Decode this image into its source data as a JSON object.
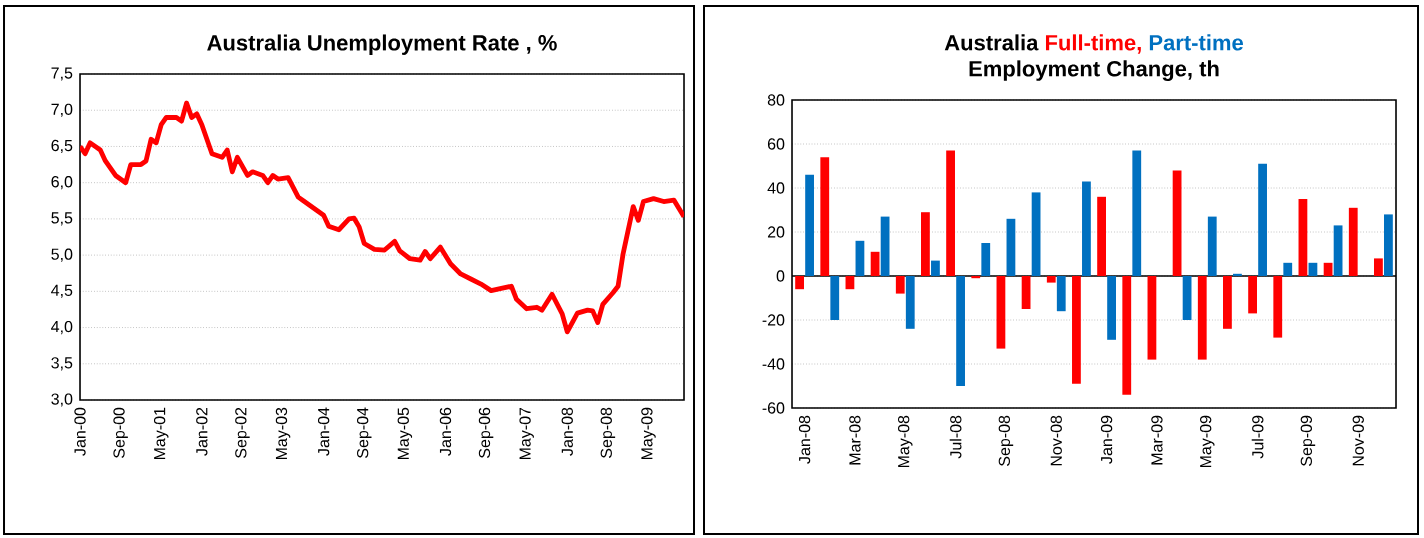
{
  "chart_data": [
    {
      "type": "line",
      "title": "Australia Unemployment Rate , %",
      "color": "#ff0000",
      "grid": "y",
      "marker": "none",
      "line_style": "solid",
      "x": [
        "2000-01",
        "2000-02",
        "2000-03",
        "2000-05",
        "2000-06",
        "2000-08",
        "2000-09",
        "2000-10",
        "2000-11",
        "2001-01",
        "2001-02",
        "2001-03",
        "2001-04",
        "2001-05",
        "2001-06",
        "2001-08",
        "2001-09",
        "2001-10",
        "2001-11",
        "2001-12",
        "2002-01",
        "2002-03",
        "2002-05",
        "2002-06",
        "2002-07",
        "2002-08",
        "2002-10",
        "2002-11",
        "2003-01",
        "2003-02",
        "2003-03",
        "2003-04",
        "2003-06",
        "2003-08",
        "2003-09",
        "2003-11",
        "2004-01",
        "2004-02",
        "2004-04",
        "2004-06",
        "2004-07",
        "2004-08",
        "2004-09",
        "2004-11",
        "2005-01",
        "2005-03",
        "2005-04",
        "2005-06",
        "2005-08",
        "2005-09",
        "2005-10",
        "2005-12",
        "2006-02",
        "2006-04",
        "2006-06",
        "2006-08",
        "2006-10",
        "2006-12",
        "2007-02",
        "2007-03",
        "2007-05",
        "2007-07",
        "2007-08",
        "2007-10",
        "2007-12",
        "2008-01",
        "2008-03",
        "2008-05",
        "2008-06",
        "2008-07",
        "2008-08",
        "2008-10",
        "2008-11",
        "2008-12",
        "2009-02",
        "2009-03",
        "2009-04",
        "2009-06",
        "2009-08",
        "2009-10",
        "2009-12"
      ],
      "values": [
        6.5,
        6.4,
        6.55,
        6.45,
        6.3,
        6.1,
        6.05,
        6.0,
        6.25,
        6.25,
        6.3,
        6.6,
        6.55,
        6.8,
        6.9,
        6.9,
        6.85,
        7.1,
        6.9,
        6.95,
        6.8,
        6.4,
        6.35,
        6.45,
        6.15,
        6.35,
        6.1,
        6.15,
        6.1,
        6.0,
        6.1,
        6.05,
        6.07,
        5.8,
        5.75,
        5.65,
        5.55,
        5.4,
        5.35,
        5.5,
        5.51,
        5.39,
        5.16,
        5.08,
        5.07,
        5.19,
        5.06,
        4.95,
        4.93,
        5.05,
        4.95,
        5.11,
        4.88,
        4.74,
        4.67,
        4.6,
        4.51,
        4.54,
        4.57,
        4.39,
        4.26,
        4.28,
        4.24,
        4.46,
        4.19,
        3.94,
        4.2,
        4.24,
        4.23,
        4.07,
        4.32,
        4.48,
        4.57,
        5.02,
        5.67,
        5.48,
        5.74,
        5.78,
        5.74,
        5.76,
        5.53
      ],
      "xlim": [
        "2000-01",
        "2009-12"
      ],
      "xticks": [
        {
          "value": "2000-01",
          "label": "Jan-00"
        },
        {
          "value": "2000-09",
          "label": "Sep-00"
        },
        {
          "value": "2001-05",
          "label": "May-01"
        },
        {
          "value": "2002-01",
          "label": "Jan-02"
        },
        {
          "value": "2002-09",
          "label": "Sep-02"
        },
        {
          "value": "2003-05",
          "label": "May-03"
        },
        {
          "value": "2004-01",
          "label": "Jan-04"
        },
        {
          "value": "2004-09",
          "label": "Sep-04"
        },
        {
          "value": "2005-05",
          "label": "May-05"
        },
        {
          "value": "2006-01",
          "label": "Jan-06"
        },
        {
          "value": "2006-09",
          "label": "Sep-06"
        },
        {
          "value": "2007-05",
          "label": "May-07"
        },
        {
          "value": "2008-01",
          "label": "Jan-08"
        },
        {
          "value": "2008-09",
          "label": "Sep-08"
        },
        {
          "value": "2009-05",
          "label": "May-09"
        }
      ],
      "ylim": [
        3.0,
        7.5
      ],
      "yticks": [
        {
          "value": 3.0,
          "label": "3,0"
        },
        {
          "value": 3.5,
          "label": "3,5"
        },
        {
          "value": 4.0,
          "label": "4,0"
        },
        {
          "value": 4.5,
          "label": "4,5"
        },
        {
          "value": 5.0,
          "label": "5,0"
        },
        {
          "value": 5.5,
          "label": "5,5"
        },
        {
          "value": 6.0,
          "label": "6,0"
        },
        {
          "value": 6.5,
          "label": "6,5"
        },
        {
          "value": 7.0,
          "label": "7,0"
        },
        {
          "value": 7.5,
          "label": "7,5"
        }
      ]
    },
    {
      "type": "bar",
      "title": "Australia",
      "subtitle": "Employment Change, th",
      "grid": "y",
      "categories": [
        "Jan-08",
        null,
        "Mar-08",
        null,
        "May-08",
        null,
        "Jul-08",
        null,
        "Sep-08",
        null,
        "Nov-08",
        null,
        "Jan-09",
        null,
        "Mar-09",
        null,
        "May-09",
        null,
        "Jul-09",
        null,
        "Sep-09",
        null,
        "Nov-09",
        null
      ],
      "series": [
        {
          "name": "Full-time,",
          "color": "#ff0000",
          "values": [
            -6,
            54,
            -6,
            11,
            -8,
            29,
            57,
            -1,
            -33,
            -15,
            -3,
            -49,
            36,
            -54,
            -38,
            48,
            -38,
            -24,
            -17,
            -28,
            35,
            6,
            31,
            8
          ]
        },
        {
          "name": "Part-time",
          "color": "#0070c0",
          "values": [
            46,
            -20,
            16,
            27,
            -24,
            7,
            -50,
            15,
            26,
            38,
            -16,
            43,
            -29,
            57,
            0,
            -20,
            27,
            1,
            51,
            6,
            6,
            23,
            0,
            28
          ]
        }
      ],
      "ylim": [
        -60,
        80
      ],
      "yticks": [
        -60,
        -40,
        -20,
        0,
        20,
        40,
        60,
        80
      ]
    }
  ]
}
